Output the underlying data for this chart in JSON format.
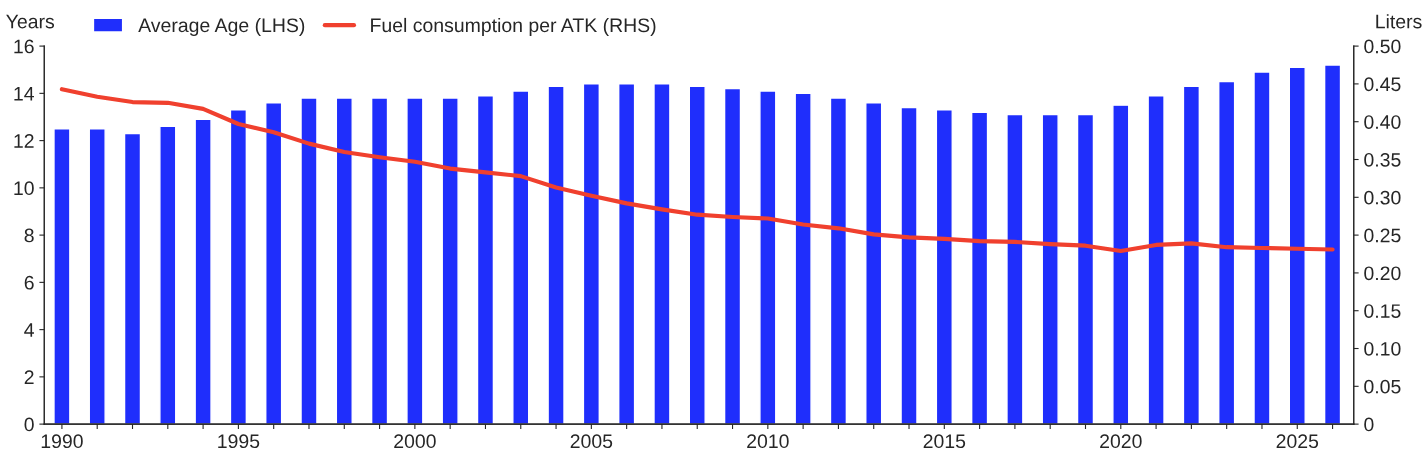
{
  "chart_data": {
    "type": "bar",
    "ylabel": "Years",
    "y2label": "Liters",
    "x": [
      1990,
      1991,
      1992,
      1993,
      1994,
      1995,
      1996,
      1997,
      1998,
      1999,
      2000,
      2001,
      2002,
      2003,
      2004,
      2005,
      2006,
      2007,
      2008,
      2009,
      2010,
      2011,
      2012,
      2013,
      2014,
      2015,
      2016,
      2017,
      2018,
      2019,
      2020,
      2021,
      2022,
      2023,
      2024,
      2025,
      2026
    ],
    "xlim": [
      1989.5,
      2026.6
    ],
    "xticks": [
      1990,
      {
        "value": 1991,
        "label": null
      },
      {
        "value": 1992,
        "label": null
      },
      {
        "value": 1993,
        "label": null
      },
      {
        "value": 1994,
        "label": null
      },
      1995,
      {
        "value": 1996,
        "label": null
      },
      {
        "value": 1997,
        "label": null
      },
      {
        "value": 1998,
        "label": null
      },
      {
        "value": 1999,
        "label": null
      },
      2000,
      {
        "value": 2001,
        "label": null
      },
      {
        "value": 2002,
        "label": null
      },
      {
        "value": 2003,
        "label": null
      },
      {
        "value": 2004,
        "label": null
      },
      2005,
      {
        "value": 2006,
        "label": null
      },
      {
        "value": 2007,
        "label": null
      },
      {
        "value": 2008,
        "label": null
      },
      {
        "value": 2009,
        "label": null
      },
      2010,
      {
        "value": 2011,
        "label": null
      },
      {
        "value": 2012,
        "label": null
      },
      {
        "value": 2013,
        "label": null
      },
      {
        "value": 2014,
        "label": null
      },
      2015,
      {
        "value": 2016,
        "label": null
      },
      {
        "value": 2017,
        "label": null
      },
      {
        "value": 2018,
        "label": null
      },
      {
        "value": 2019,
        "label": null
      },
      2020,
      {
        "value": 2021,
        "label": null
      },
      {
        "value": 2022,
        "label": null
      },
      {
        "value": 2023,
        "label": null
      },
      {
        "value": 2024,
        "label": null
      },
      2025,
      {
        "value": 2026,
        "label": null
      }
    ],
    "ylim": [
      0,
      16
    ],
    "yticks": [
      0,
      2,
      4,
      6,
      8,
      10,
      12,
      14,
      16
    ],
    "y2lim": [
      0,
      0.5
    ],
    "y2ticks": [
      {
        "value": 0,
        "label": "0"
      },
      {
        "value": 0.05,
        "label": "0.05"
      },
      {
        "value": 0.1,
        "label": "0.10"
      },
      {
        "value": 0.15,
        "label": "0.15"
      },
      {
        "value": 0.2,
        "label": "0.20"
      },
      {
        "value": 0.25,
        "label": "0.25"
      },
      {
        "value": 0.3,
        "label": "0.30"
      },
      {
        "value": 0.35,
        "label": "0.35"
      },
      {
        "value": 0.4,
        "label": "0.40"
      },
      {
        "value": 0.45,
        "label": "0.45"
      },
      {
        "value": 0.5,
        "label": "0.50"
      }
    ],
    "legend": "top left",
    "grid": false,
    "series": [
      {
        "name": "Average Age (LHS)",
        "color": "#1f2efc",
        "values": [
          12.5,
          12.5,
          12.3,
          12.6,
          12.9,
          13.3,
          13.6,
          13.8,
          13.8,
          13.8,
          13.8,
          13.8,
          13.9,
          14.1,
          14.3,
          14.4,
          14.4,
          14.4,
          14.3,
          14.2,
          14.1,
          14.0,
          13.8,
          13.6,
          13.4,
          13.3,
          13.2,
          13.1,
          13.1,
          13.1,
          13.5,
          13.9,
          14.3,
          14.5,
          14.9,
          15.1,
          15.2
        ]
      },
      {
        "name": "Fuel consumption per ATK (RHS)",
        "type": "line",
        "axis": "y2",
        "color": "#f0402e",
        "values": [
          0.443,
          0.433,
          0.426,
          0.425,
          0.417,
          0.397,
          0.386,
          0.371,
          0.36,
          0.353,
          0.347,
          0.338,
          0.333,
          0.328,
          0.313,
          0.302,
          0.292,
          0.284,
          0.277,
          0.274,
          0.272,
          0.264,
          0.259,
          0.251,
          0.247,
          0.245,
          0.242,
          0.241,
          0.238,
          0.236,
          0.229,
          0.237,
          0.239,
          0.234,
          0.233,
          0.232,
          0.231
        ]
      }
    ]
  }
}
